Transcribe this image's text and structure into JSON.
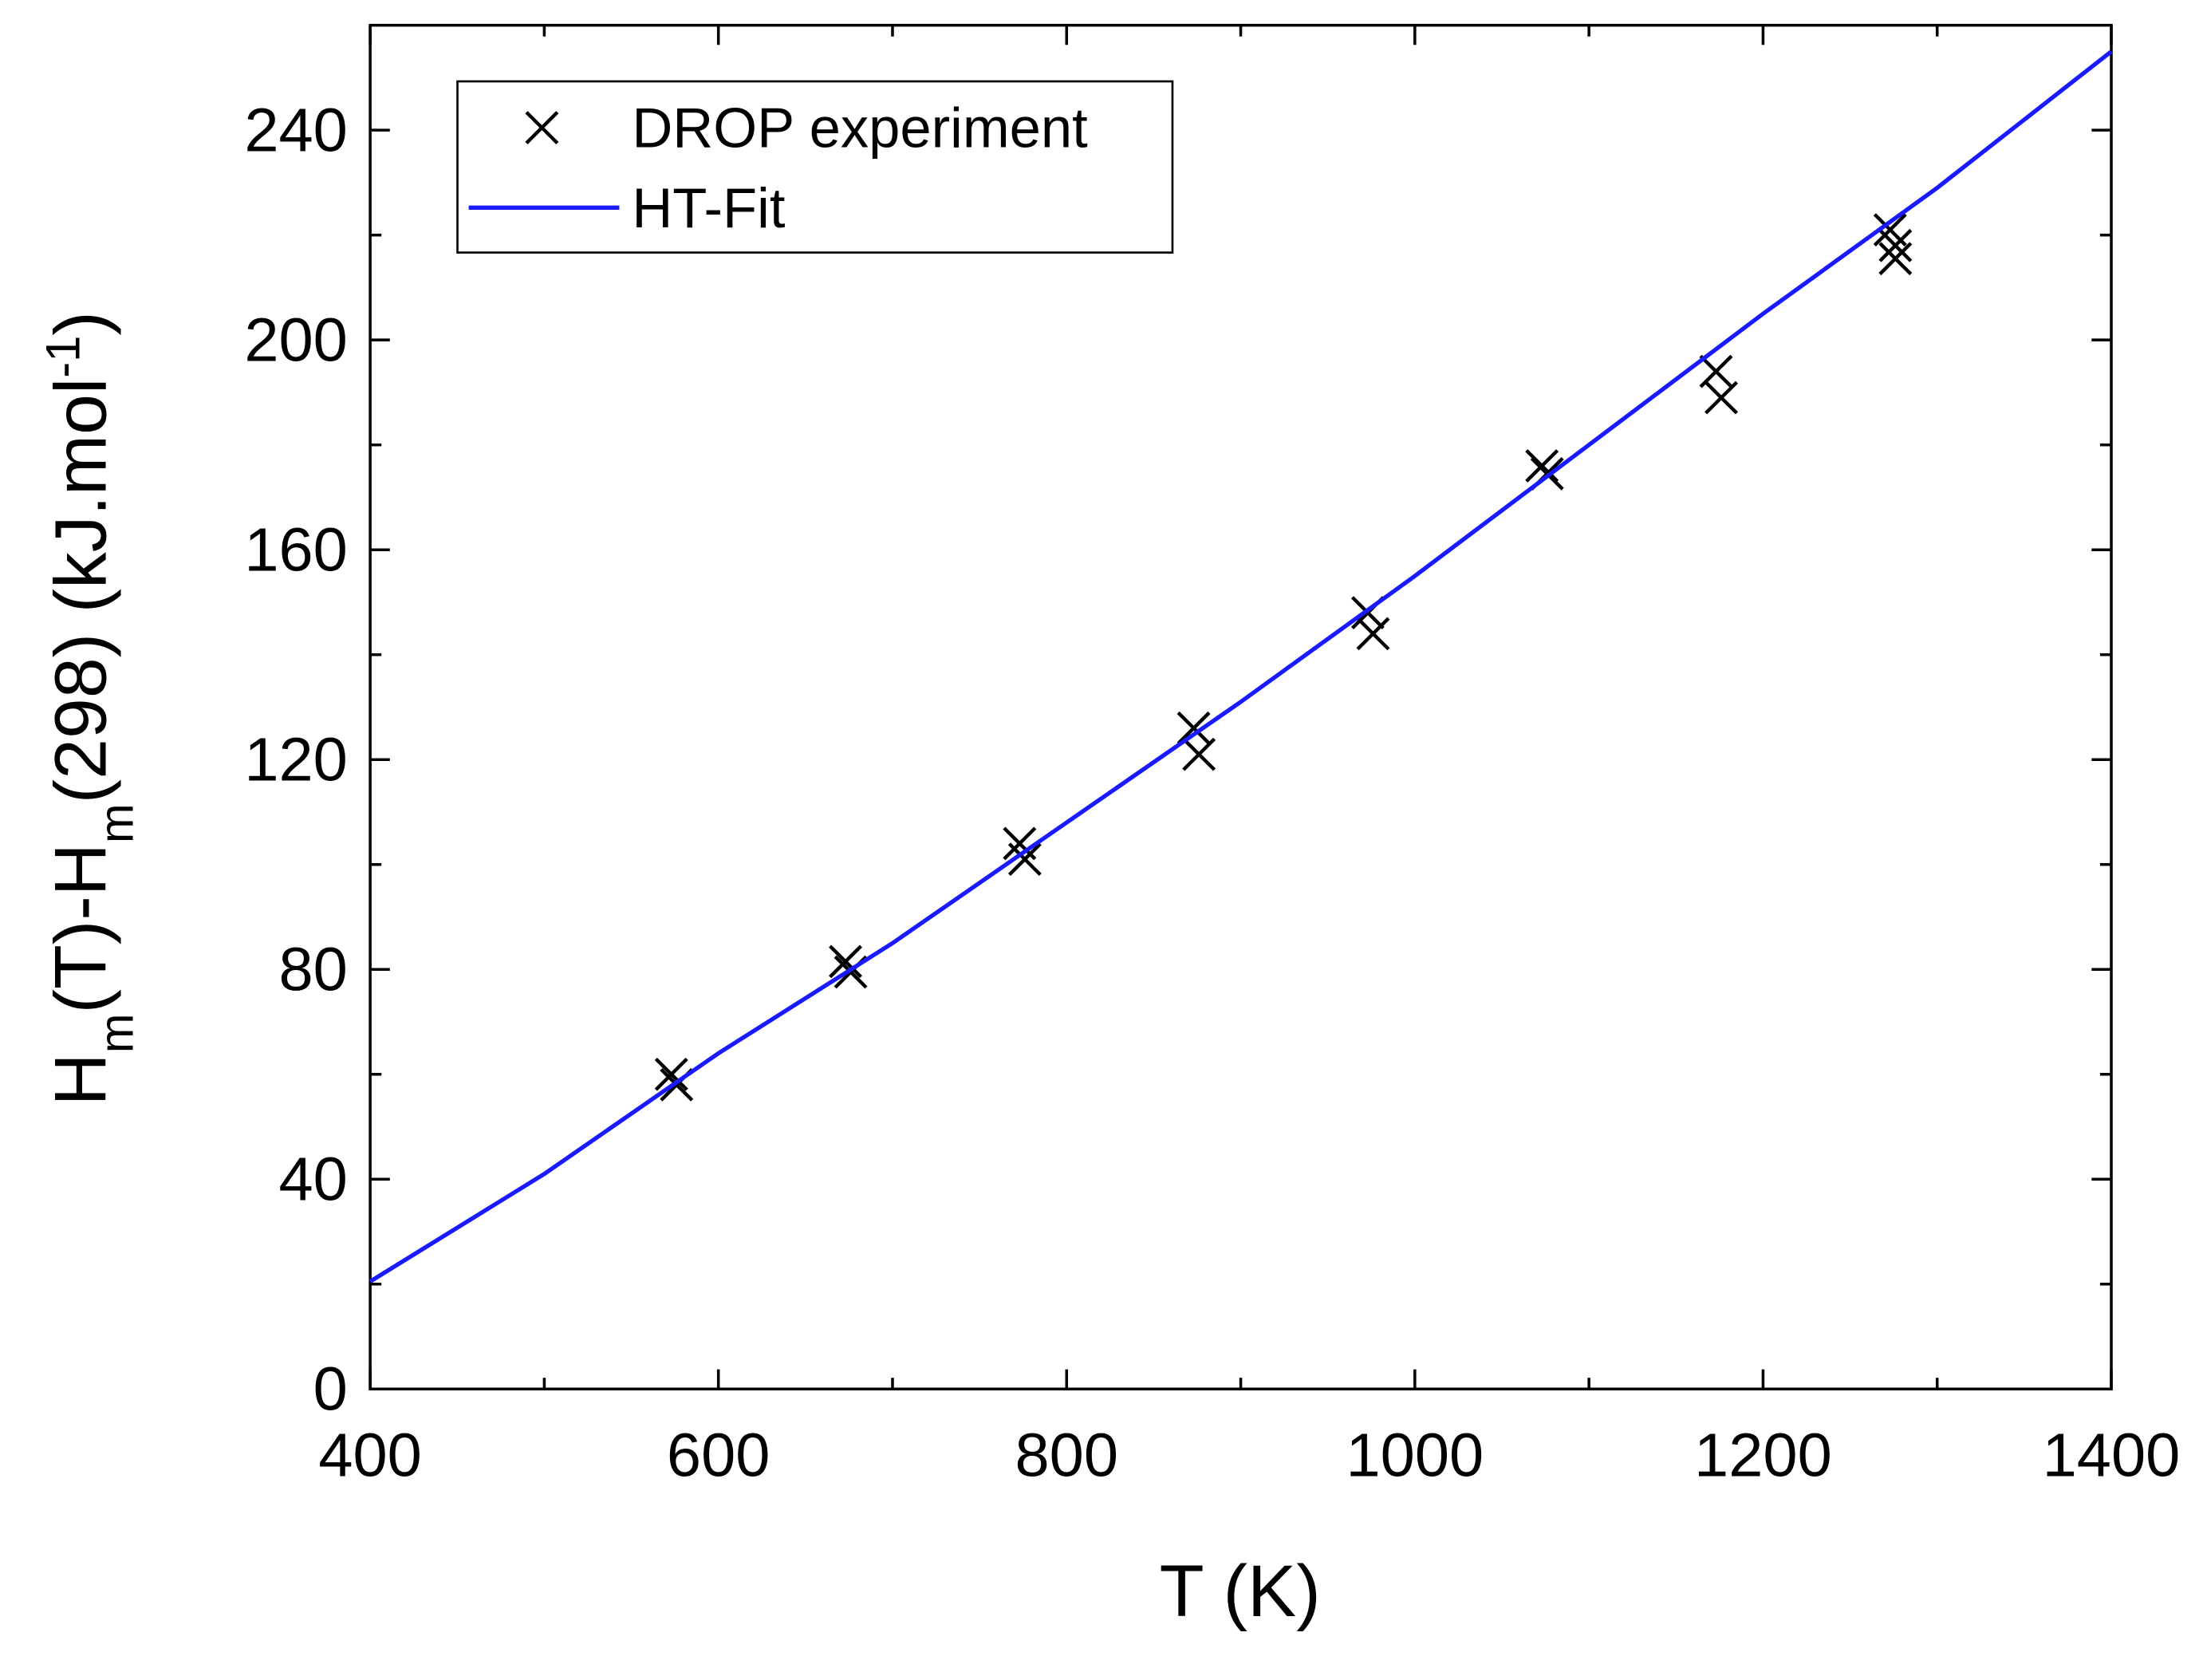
{
  "chart_data": {
    "type": "scatter",
    "x_label": "T (K)",
    "y_label": [
      "H",
      "m",
      "(T)-H",
      "m",
      "(298) (kJ.mol",
      "-1",
      ")"
    ],
    "xlim": [
      400,
      1400
    ],
    "xticks": [
      400,
      600,
      800,
      1000,
      1200,
      1400
    ],
    "xminorticks": [
      500,
      700,
      900,
      1100,
      1300
    ],
    "ylim": [
      0,
      260
    ],
    "yticks": [
      0,
      40,
      80,
      120,
      160,
      200,
      240
    ],
    "yminorticks": [
      20,
      60,
      100,
      140,
      180,
      220
    ],
    "legend": "upper left",
    "series": [
      {
        "name": "DROP experiment",
        "color": "#000000",
        "marker": "x",
        "x": [
          573,
          576,
          673,
          676,
          773,
          776,
          873,
          876,
          973,
          976,
          1073,
          1076,
          1173,
          1176,
          1273,
          1276,
          1276
        ],
        "values": [
          60,
          58,
          81.5,
          79.5,
          104,
          101,
          126,
          121,
          148,
          144,
          176,
          174.5,
          194,
          189,
          221,
          218,
          215.5
        ]
      },
      {
        "name": "HT-Fit",
        "color": "#1a1aff",
        "marker": "line",
        "x": [
          400,
          500,
          600,
          700,
          800,
          900,
          1000,
          1100,
          1200,
          1300,
          1400
        ],
        "values": [
          20.5,
          41,
          64,
          85,
          108,
          131,
          155,
          180,
          205,
          229,
          255
        ]
      }
    ]
  }
}
